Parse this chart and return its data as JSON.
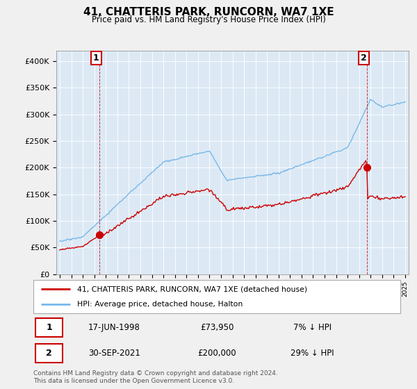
{
  "title": "41, CHATTERIS PARK, RUNCORN, WA7 1XE",
  "subtitle": "Price paid vs. HM Land Registry's House Price Index (HPI)",
  "ylim": [
    0,
    420000
  ],
  "yticks": [
    0,
    50000,
    100000,
    150000,
    200000,
    250000,
    300000,
    350000,
    400000
  ],
  "ytick_labels": [
    "£0",
    "£50K",
    "£100K",
    "£150K",
    "£200K",
    "£250K",
    "£300K",
    "£350K",
    "£400K"
  ],
  "hpi_color": "#7ab8e8",
  "price_color": "#cc0000",
  "bg_color": "#f0f0f0",
  "plot_bg": "#dce9f5",
  "annotation1_date": "17-JUN-1998",
  "annotation1_price": 73950,
  "annotation1_hpi_diff": "7% ↓ HPI",
  "annotation2_date": "30-SEP-2021",
  "annotation2_price": 200000,
  "annotation2_hpi_diff": "29% ↓ HPI",
  "legend_line1": "41, CHATTERIS PARK, RUNCORN, WA7 1XE (detached house)",
  "legend_line2": "HPI: Average price, detached house, Halton",
  "footer": "Contains HM Land Registry data © Crown copyright and database right 2024.\nThis data is licensed under the Open Government Licence v3.0.",
  "x_start_year": 1995,
  "x_end_year": 2025
}
